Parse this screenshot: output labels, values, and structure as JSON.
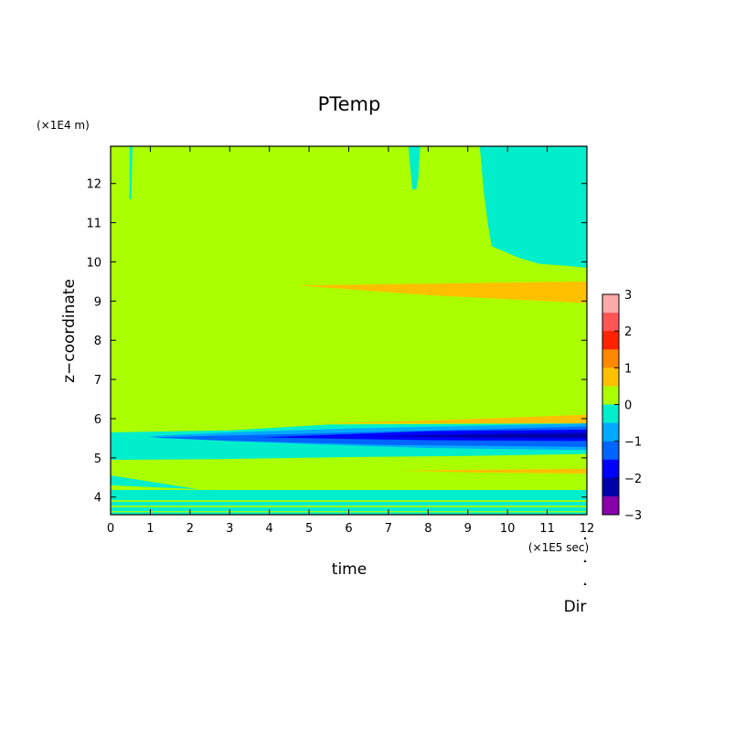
{
  "chart_data": {
    "type": "heatmap",
    "title": "PTemp",
    "xlabel": "time",
    "ylabel": "z−coordinate",
    "x_multiplier": "(×1E5 sec)",
    "y_multiplier": "(×1E4 m)",
    "xlim": [
      0,
      12
    ],
    "ylim": [
      3.55,
      12.95
    ],
    "x_ticks": [
      0,
      1,
      2,
      3,
      4,
      5,
      6,
      7,
      8,
      9,
      10,
      11,
      12
    ],
    "y_ticks": [
      4,
      5,
      6,
      7,
      8,
      9,
      10,
      11,
      12
    ],
    "colorbar": {
      "ticks": [
        "3",
        "2",
        "1",
        "0",
        "−1",
        "−2",
        "−3"
      ],
      "levels": [
        {
          "range": [
            2.5,
            3
          ],
          "color": "#ffaaaa"
        },
        {
          "range": [
            2,
            2.5
          ],
          "color": "#ff5555"
        },
        {
          "range": [
            1.5,
            2
          ],
          "color": "#ff2200"
        },
        {
          "range": [
            1,
            1.5
          ],
          "color": "#ff8800"
        },
        {
          "range": [
            0.5,
            1
          ],
          "color": "#ffc000"
        },
        {
          "range": [
            0,
            0.5
          ],
          "color": "#aaff00"
        },
        {
          "range": [
            -0.5,
            0
          ],
          "color": "#00eecc"
        },
        {
          "range": [
            -1,
            -0.5
          ],
          "color": "#00aaff"
        },
        {
          "range": [
            -1.5,
            -1
          ],
          "color": "#0066ff"
        },
        {
          "range": [
            -2,
            -1.5
          ],
          "color": "#0000ff"
        },
        {
          "range": [
            -2.5,
            -2
          ],
          "color": "#0000aa"
        },
        {
          "range": [
            -3,
            -2.5
          ],
          "color": "#8800aa"
        }
      ]
    },
    "background_level_color": "#aaff00",
    "regions": [
      {
        "name": "cyan-upper-right",
        "color": "#00eecc",
        "points": [
          [
            9.3,
            12.95
          ],
          [
            12,
            12.95
          ],
          [
            12,
            9.85
          ],
          [
            11.5,
            9.9
          ],
          [
            10.8,
            9.95
          ],
          [
            10.3,
            10.1
          ],
          [
            9.6,
            10.4
          ],
          [
            9.5,
            11.0
          ],
          [
            9.4,
            11.8
          ]
        ]
      },
      {
        "name": "cyan-streak-a",
        "color": "#00eecc",
        "points": [
          [
            0.48,
            12.95
          ],
          [
            0.55,
            12.95
          ],
          [
            0.52,
            11.6
          ],
          [
            0.48,
            11.6
          ]
        ]
      },
      {
        "name": "cyan-streak-b",
        "color": "#00eecc",
        "points": [
          [
            7.5,
            12.95
          ],
          [
            7.8,
            12.95
          ],
          [
            7.75,
            12.1
          ],
          [
            7.7,
            11.85
          ],
          [
            7.6,
            11.85
          ],
          [
            7.55,
            12.4
          ]
        ]
      },
      {
        "name": "orange-band-9",
        "color": "#ffc000",
        "points": [
          [
            4.7,
            9.4
          ],
          [
            12,
            9.5
          ],
          [
            12,
            8.95
          ],
          [
            8,
            9.15
          ]
        ]
      },
      {
        "name": "cyan-band-upper",
        "color": "#00eecc",
        "points": [
          [
            0,
            5.65
          ],
          [
            3,
            5.7
          ],
          [
            5.5,
            5.85
          ],
          [
            12,
            5.88
          ],
          [
            12,
            5.1
          ],
          [
            9,
            5.05
          ],
          [
            6,
            5.02
          ],
          [
            3,
            4.97
          ],
          [
            0,
            4.95
          ]
        ]
      },
      {
        "name": "orange-band-6",
        "color": "#ffc000",
        "points": [
          [
            5,
            5.88
          ],
          [
            8,
            5.95
          ],
          [
            12,
            6.1
          ],
          [
            12,
            5.88
          ]
        ]
      },
      {
        "name": "azure-band",
        "color": "#00aaff",
        "points": [
          [
            0.9,
            5.55
          ],
          [
            3,
            5.65
          ],
          [
            6,
            5.75
          ],
          [
            12,
            5.88
          ],
          [
            12,
            5.2
          ],
          [
            8,
            5.25
          ],
          [
            5,
            5.35
          ],
          [
            2,
            5.48
          ]
        ]
      },
      {
        "name": "blue-band",
        "color": "#0066ff",
        "points": [
          [
            1,
            5.52
          ],
          [
            5,
            5.62
          ],
          [
            12,
            5.8
          ],
          [
            12,
            5.28
          ],
          [
            7,
            5.33
          ],
          [
            3,
            5.43
          ]
        ]
      },
      {
        "name": "dark-blue-core",
        "color": "#0000ff",
        "points": [
          [
            3.8,
            5.52
          ],
          [
            8,
            5.68
          ],
          [
            12,
            5.72
          ],
          [
            12,
            5.43
          ],
          [
            8,
            5.45
          ]
        ]
      },
      {
        "name": "navy-core",
        "color": "#0000aa",
        "points": [
          [
            6.5,
            5.55
          ],
          [
            10,
            5.62
          ],
          [
            12,
            5.64
          ],
          [
            12,
            5.5
          ],
          [
            9,
            5.52
          ]
        ]
      },
      {
        "name": "cyan-lower-wedge",
        "color": "#00eecc",
        "points": [
          [
            0,
            4.55
          ],
          [
            2.2,
            4.2
          ],
          [
            0,
            4.3
          ]
        ]
      },
      {
        "name": "orange-lower-sliver",
        "color": "#ffc000",
        "points": [
          [
            7.3,
            4.68
          ],
          [
            12,
            4.72
          ],
          [
            12,
            4.6
          ],
          [
            9,
            4.63
          ]
        ]
      },
      {
        "name": "cyan-lower-block",
        "color": "#00eecc",
        "points": [
          [
            0,
            4.18
          ],
          [
            12,
            4.18
          ],
          [
            12,
            3.55
          ],
          [
            0,
            3.55
          ]
        ]
      },
      {
        "name": "green-line-1",
        "color": "#aaff00",
        "points": [
          [
            0,
            3.92
          ],
          [
            12,
            3.92
          ],
          [
            12,
            3.88
          ],
          [
            0,
            3.88
          ]
        ]
      },
      {
        "name": "green-line-2",
        "color": "#aaff00",
        "points": [
          [
            0,
            3.78
          ],
          [
            12,
            3.78
          ],
          [
            12,
            3.74
          ],
          [
            0,
            3.74
          ]
        ]
      },
      {
        "name": "green-line-3",
        "color": "#aaff00",
        "points": [
          [
            0,
            3.64
          ],
          [
            12,
            3.64
          ],
          [
            12,
            3.61
          ],
          [
            0,
            3.61
          ]
        ]
      }
    ]
  },
  "footer": {
    "label": "Dir"
  }
}
